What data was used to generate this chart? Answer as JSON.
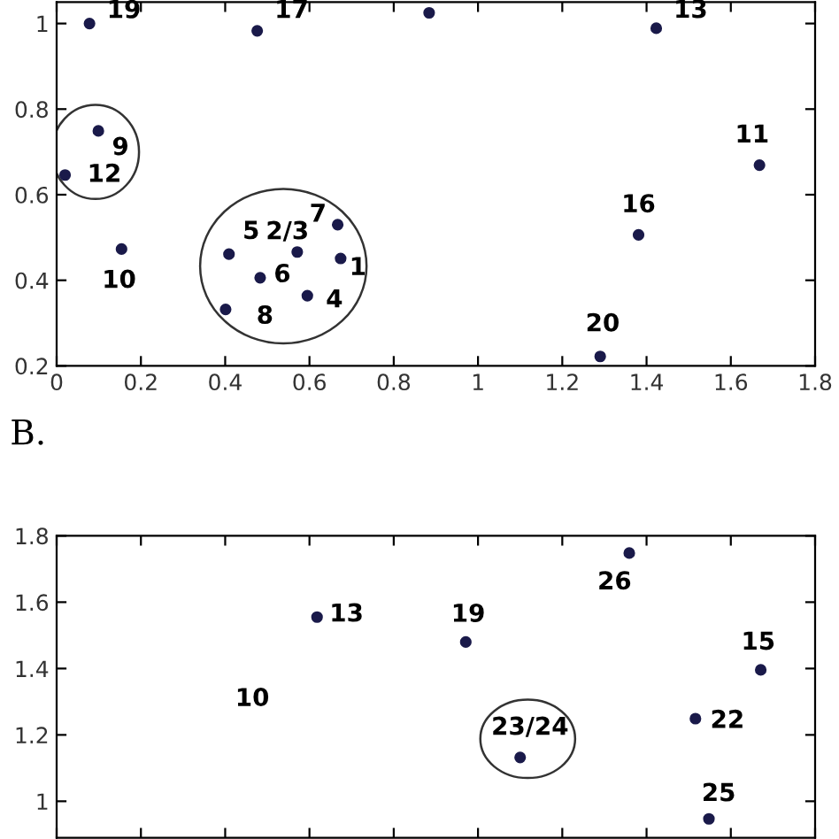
{
  "chart_data": [
    {
      "type": "scatter",
      "color": "#1a1a4a",
      "marker": "circle",
      "grid": false,
      "legend": false,
      "x": [
        0.078,
        0.476,
        0.884,
        1.423,
        0.099,
        0.02,
        1.668,
        1.381,
        0.154,
        0.409,
        0.571,
        0.667,
        0.674,
        0.483,
        0.595,
        0.401,
        1.29
      ],
      "values": [
        1.0,
        0.983,
        1.025,
        0.989,
        0.749,
        0.646,
        0.669,
        0.506,
        0.473,
        0.461,
        0.466,
        0.53,
        0.451,
        0.406,
        0.364,
        0.332,
        0.222
      ],
      "xlim": [
        0,
        1.8
      ],
      "xticks": [
        0,
        0.2,
        0.4,
        0.6,
        0.8,
        1,
        1.2,
        1.4,
        1.6,
        1.8
      ],
      "ylim": [
        0.2,
        1.05
      ],
      "yticks": [
        0.2,
        0.4,
        0.6,
        0.8,
        1
      ],
      "annotations": [
        {
          "text": "19",
          "x": 0.078,
          "y": 1.0
        },
        {
          "text": "17",
          "x": 0.476,
          "y": 0.983
        },
        {
          "text": "13",
          "x": 1.423,
          "y": 0.989
        },
        {
          "text": "9",
          "x": 0.099,
          "y": 0.749
        },
        {
          "text": "12",
          "x": 0.02,
          "y": 0.646
        },
        {
          "text": "11",
          "x": 1.668,
          "y": 0.669
        },
        {
          "text": "16",
          "x": 1.381,
          "y": 0.506
        },
        {
          "text": "10",
          "x": 0.154,
          "y": 0.473
        },
        {
          "text": "5",
          "x": 0.409,
          "y": 0.461
        },
        {
          "text": "2/3",
          "x": 0.571,
          "y": 0.466
        },
        {
          "text": "7",
          "x": 0.667,
          "y": 0.53
        },
        {
          "text": "1",
          "x": 0.674,
          "y": 0.451
        },
        {
          "text": "6",
          "x": 0.483,
          "y": 0.406
        },
        {
          "text": "4",
          "x": 0.595,
          "y": 0.364
        },
        {
          "text": "8",
          "x": 0.401,
          "y": 0.332
        },
        {
          "text": "20",
          "x": 1.29,
          "y": 0.222
        }
      ]
    },
    {
      "type": "scatter",
      "title": "B.",
      "color": "#1a1a4a",
      "marker": "circle",
      "grid": false,
      "legend": false,
      "tick_labels": "y",
      "x": [
        0.618,
        0.971,
        1.359,
        1.671,
        1.516,
        1.1,
        1.548
      ],
      "values": [
        1.555,
        1.48,
        1.748,
        1.396,
        1.249,
        1.132,
        0.947
      ],
      "xlim": [
        0,
        1.8
      ],
      "xticks": [
        {
          "value": 0,
          "label": null
        },
        {
          "value": 0.2,
          "label": null
        },
        {
          "value": 0.4,
          "label": null
        },
        {
          "value": 0.6,
          "label": null
        },
        {
          "value": 0.8,
          "label": null
        },
        {
          "value": 1,
          "label": null
        },
        {
          "value": 1.2,
          "label": null
        },
        {
          "value": 1.4,
          "label": null
        },
        {
          "value": 1.6,
          "label": null
        },
        {
          "value": 1.8,
          "label": null
        }
      ],
      "ylim": [
        0.89,
        1.8
      ],
      "yticks": [
        1,
        1.2,
        1.4,
        1.6,
        1.8
      ],
      "annotations": [
        {
          "text": "13",
          "x": 0.618,
          "y": 1.555
        },
        {
          "text": "19",
          "x": 0.971,
          "y": 1.48
        },
        {
          "text": "26",
          "x": 1.359,
          "y": 1.748
        },
        {
          "text": "15",
          "x": 1.671,
          "y": 1.396
        },
        {
          "text": "22",
          "x": 1.516,
          "y": 1.249
        },
        {
          "text": "23/24",
          "x": 1.1,
          "y": 1.132
        },
        {
          "text": "25",
          "x": 1.548,
          "y": 0.947
        },
        "10"
      ]
    }
  ]
}
